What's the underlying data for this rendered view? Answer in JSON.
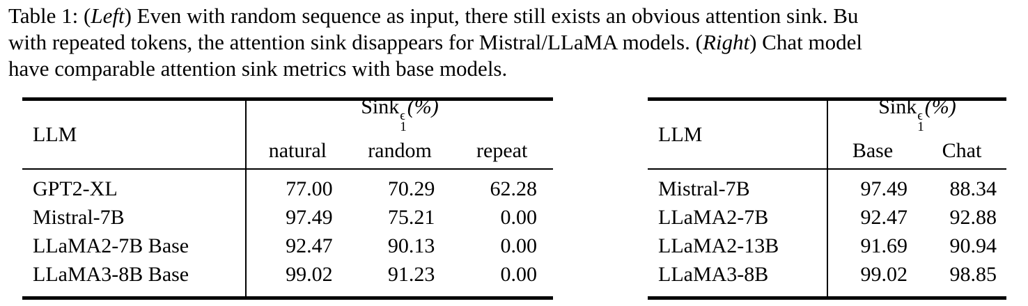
{
  "colors": {
    "text": "#000000",
    "background": "#ffffff",
    "rule": "#000000"
  },
  "caption": {
    "line1": {
      "pre": "Table 1: (",
      "italic": "Left",
      "post": ") Even with random sequence as input, there still exists an obvious attention sink. Bu"
    },
    "line2": {
      "pre": "with repeated tokens, the attention sink disappears for Mistral/LLaMA models. (",
      "italic": "Right",
      "post": ") Chat model"
    },
    "line3": "have comparable attention sink metrics with base models."
  },
  "metric_header": {
    "base": "Sink",
    "sup": "ϵ",
    "sub": "1",
    "suffix": "(%)"
  },
  "left_table": {
    "llm_header": "LLM",
    "columns": [
      "natural",
      "random",
      "repeat"
    ],
    "rows": [
      {
        "llm": "GPT2-XL",
        "values": [
          "77.00",
          "70.29",
          "62.28"
        ]
      },
      {
        "llm": "Mistral-7B",
        "values": [
          "97.49",
          "75.21",
          "0.00"
        ]
      },
      {
        "llm": "LLaMA2-7B Base",
        "values": [
          "92.47",
          "90.13",
          "0.00"
        ]
      },
      {
        "llm": "LLaMA3-8B Base",
        "values": [
          "99.02",
          "91.23",
          "0.00"
        ]
      }
    ]
  },
  "right_table": {
    "llm_header": "LLM",
    "columns": [
      "Base",
      "Chat"
    ],
    "rows": [
      {
        "llm": "Mistral-7B",
        "values": [
          "97.49",
          "88.34"
        ]
      },
      {
        "llm": "LLaMA2-7B",
        "values": [
          "92.47",
          "92.88"
        ]
      },
      {
        "llm": "LLaMA2-13B",
        "values": [
          "91.69",
          "90.94"
        ]
      },
      {
        "llm": "LLaMA3-8B",
        "values": [
          "99.02",
          "98.85"
        ]
      }
    ]
  }
}
